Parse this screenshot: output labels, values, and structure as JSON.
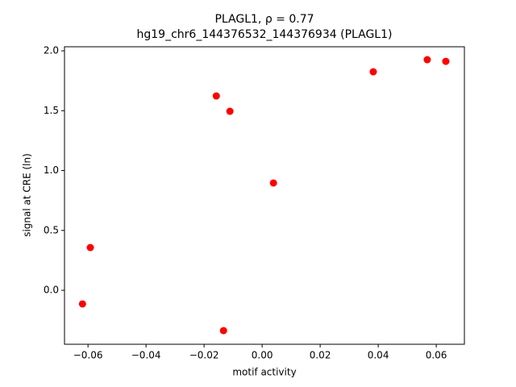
{
  "chart_data": {
    "type": "scatter",
    "title": "PLAGL1, ρ = 0.77",
    "subtitle": "hg19_chr6_144376532_144376934 (PLAGL1)",
    "x_label": "motif activity",
    "y_label": "signal at CRE (ln)",
    "color": "#ff0000",
    "grid": false,
    "x": [
      -0.0619,
      -0.0592,
      -0.0158,
      -0.0111,
      -0.0133,
      0.0039,
      0.0383,
      0.0569,
      0.0633
    ],
    "values": [
      -0.114,
      0.357,
      1.623,
      1.495,
      -0.337,
      0.896,
      1.825,
      1.926,
      1.912
    ],
    "xlim": [
      -0.0681,
      0.0697
    ],
    "ylim": [
      -0.451,
      2.034
    ],
    "xticks": [
      {
        "value": -0.06,
        "label": "−0.06"
      },
      {
        "value": -0.04,
        "label": "−0.04"
      },
      {
        "value": -0.02,
        "label": "−0.02"
      },
      {
        "value": 0,
        "label": "0.00"
      },
      {
        "value": 0.02,
        "label": "0.02"
      },
      {
        "value": 0.04,
        "label": "0.04"
      },
      {
        "value": 0.06,
        "label": "0.06"
      }
    ],
    "yticks": [
      {
        "value": 0,
        "label": "0.0"
      },
      {
        "value": 0.5,
        "label": "0.5"
      },
      {
        "value": 1,
        "label": "1.0"
      },
      {
        "value": 1.5,
        "label": "1.5"
      },
      {
        "value": 2,
        "label": "2.0"
      }
    ]
  }
}
